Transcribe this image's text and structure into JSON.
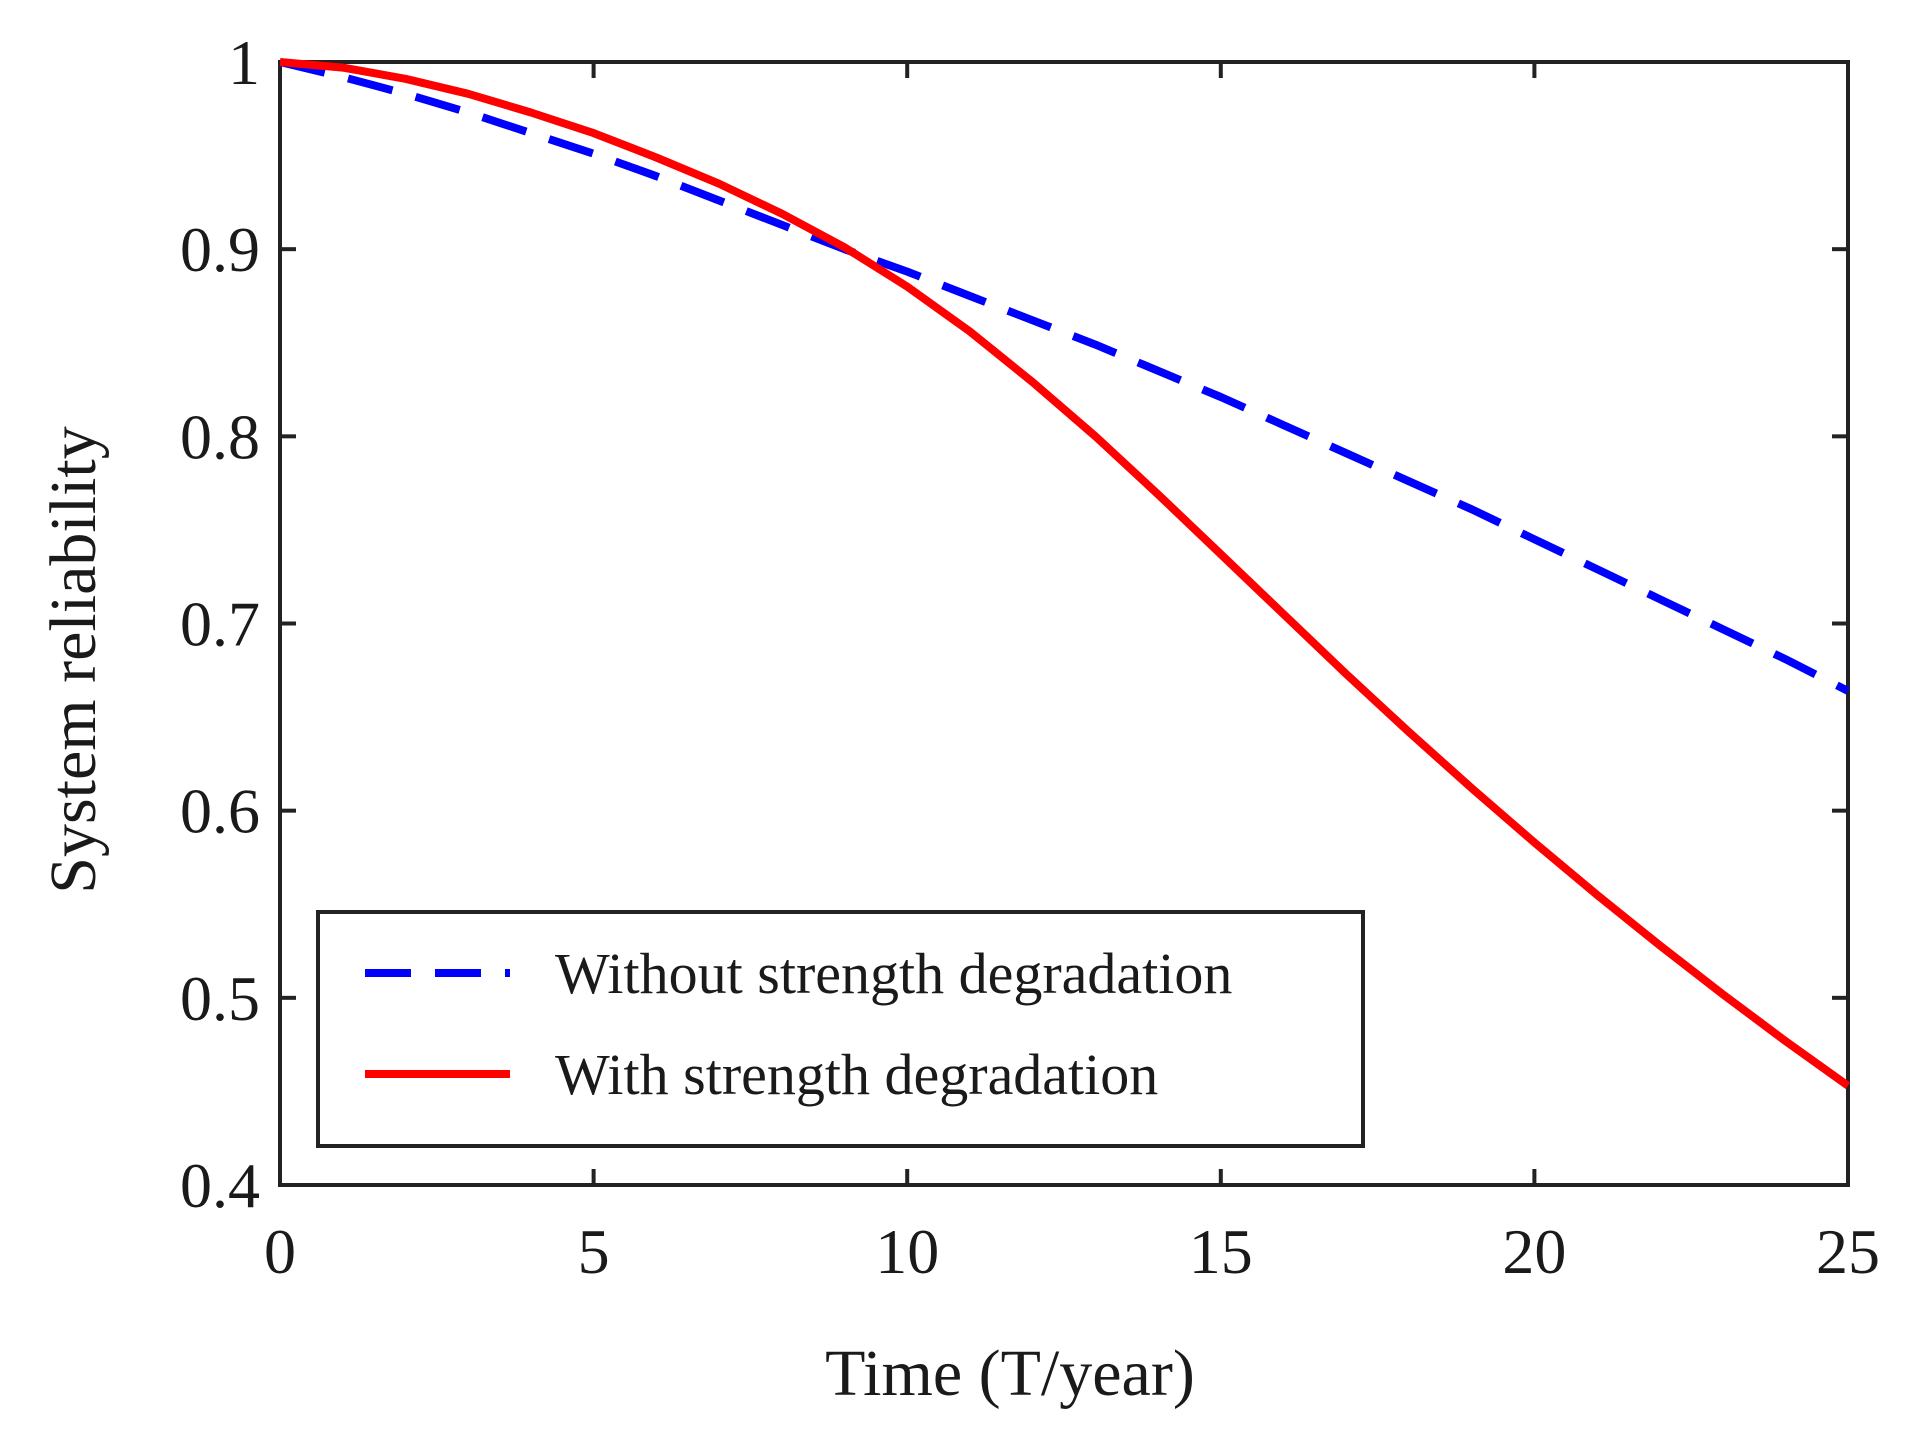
{
  "chart_data": {
    "type": "line",
    "title": "",
    "xlabel": "Time (T/year)",
    "ylabel": "System reliability",
    "xlim": [
      0,
      25
    ],
    "ylim": [
      0.4,
      1.0
    ],
    "xticks": [
      0,
      5,
      10,
      15,
      20,
      25
    ],
    "xtick_labels": [
      "0",
      "5",
      "10",
      "15",
      "20",
      "25"
    ],
    "yticks": [
      0.4,
      0.5,
      0.6,
      0.7,
      0.8,
      0.9,
      1.0
    ],
    "ytick_labels": [
      "0.4",
      "0.5",
      "0.6",
      "0.7",
      "0.8",
      "0.9",
      "1"
    ],
    "grid": false,
    "legend_position": "bottom-left",
    "series": [
      {
        "name": "Without strength degradation",
        "color": "#0000ff",
        "style": "dashed",
        "x": [
          0,
          1,
          2,
          3,
          4,
          5,
          6,
          7,
          8,
          9,
          10,
          11,
          12,
          13,
          14,
          15,
          16,
          17,
          18,
          19,
          20,
          21,
          22,
          23,
          24,
          25
        ],
        "y": [
          1.0,
          0.992,
          0.983,
          0.973,
          0.962,
          0.951,
          0.939,
          0.926,
          0.913,
          0.9,
          0.888,
          0.875,
          0.862,
          0.849,
          0.835,
          0.821,
          0.806,
          0.791,
          0.776,
          0.761,
          0.745,
          0.729,
          0.713,
          0.697,
          0.681,
          0.664
        ]
      },
      {
        "name": "With strength degradation",
        "color": "#ff0000",
        "style": "solid",
        "x": [
          0,
          1,
          2,
          3,
          4,
          5,
          6,
          7,
          8,
          9,
          10,
          11,
          12,
          13,
          14,
          15,
          16,
          17,
          18,
          19,
          20,
          21,
          22,
          23,
          24,
          25
        ],
        "y": [
          1.0,
          0.997,
          0.991,
          0.983,
          0.973,
          0.962,
          0.949,
          0.935,
          0.919,
          0.901,
          0.88,
          0.856,
          0.829,
          0.8,
          0.769,
          0.737,
          0.705,
          0.673,
          0.642,
          0.612,
          0.583,
          0.555,
          0.528,
          0.502,
          0.477,
          0.453
        ]
      }
    ]
  }
}
